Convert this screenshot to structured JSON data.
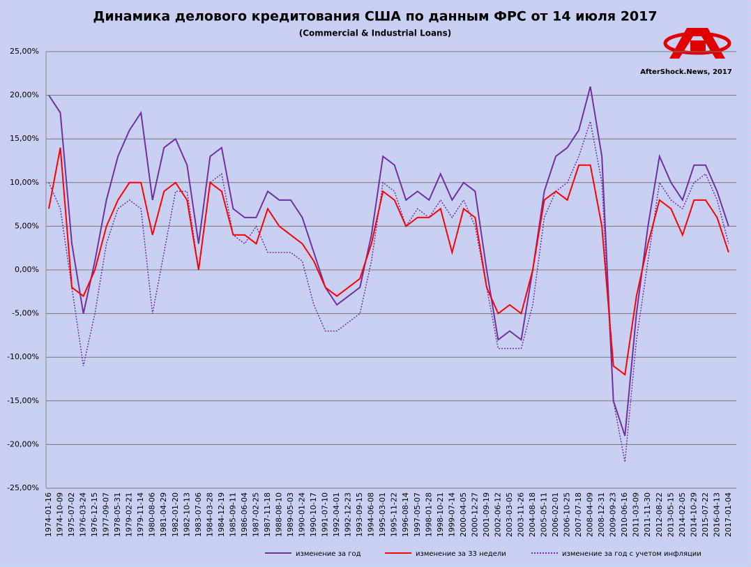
{
  "chart_data": {
    "type": "line",
    "title": "Динамика делового кредитования США по данным ФРС от 14 июля 2017",
    "subtitle": "(Commercial & Industrial Loans)",
    "watermark": "AfterShock.News, 2017",
    "categories": [
      "1974-01-16",
      "1974-10-09",
      "1975-07-02",
      "1976-03-24",
      "1976-12-15",
      "1977-09-07",
      "1978-05-31",
      "1979-02-21",
      "1979-11-14",
      "1980-08-06",
      "1981-04-29",
      "1982-01-20",
      "1982-10-13",
      "1983-07-06",
      "1984-03-28",
      "1984-12-19",
      "1985-09-11",
      "1986-06-04",
      "1987-02-25",
      "1987-11-18",
      "1988-08-10",
      "1989-05-03",
      "1990-01-24",
      "1990-10-17",
      "1991-07-10",
      "1992-04-01",
      "1992-12-23",
      "1993-09-15",
      "1994-06-08",
      "1995-03-01",
      "1995-11-22",
      "1996-08-14",
      "1997-05-07",
      "1998-01-28",
      "1998-10-21",
      "1999-07-14",
      "2000-04-05",
      "2000-12-27",
      "2001-09-19",
      "2002-06-12",
      "2003-03-05",
      "2003-11-26",
      "2004-08-18",
      "2005-05-11",
      "2006-02-01",
      "2006-10-25",
      "2007-07-18",
      "2008-04-09",
      "2008-12-31",
      "2009-09-23",
      "2010-06-16",
      "2011-03-09",
      "2011-11-30",
      "2012-08-22",
      "2013-05-15",
      "2014-02-05",
      "2014-10-29",
      "2015-07-22",
      "2016-04-13",
      "2017-01-04"
    ],
    "series": [
      {
        "name": "изменение за год",
        "color": "#7030a0",
        "style": "solid",
        "values": [
          20,
          18,
          3,
          -5,
          1,
          8,
          13,
          16,
          18,
          8,
          14,
          15,
          12,
          3,
          13,
          14,
          7,
          6,
          6,
          9,
          8,
          8,
          6,
          2,
          -2,
          -4,
          -3,
          -2,
          4,
          13,
          12,
          8,
          9,
          8,
          11,
          8,
          10,
          9,
          0,
          -8,
          -7,
          -8,
          0,
          9,
          13,
          14,
          16,
          21,
          13,
          -15,
          -19,
          -5,
          5,
          13,
          10,
          8,
          12,
          12,
          9,
          5
        ]
      },
      {
        "name": "изменение за 33 недели",
        "color": "#ff0000",
        "style": "solid",
        "values": [
          7,
          14,
          -2,
          -3,
          0,
          5,
          8,
          10,
          10,
          4,
          9,
          10,
          8,
          0,
          10,
          9,
          4,
          4,
          3,
          7,
          5,
          4,
          3,
          1,
          -2,
          -3,
          -2,
          -1,
          3,
          9,
          8,
          5,
          6,
          6,
          7,
          2,
          7,
          6,
          -2,
          -5,
          -4,
          -5,
          0,
          8,
          9,
          8,
          12,
          12,
          5,
          -11,
          -12,
          -3,
          3,
          8,
          7,
          4,
          8,
          8,
          6,
          2
        ]
      },
      {
        "name": "изменение за год с учетом инфляции",
        "color": "#7030a0",
        "style": "dotted",
        "values": [
          10,
          7,
          -2,
          -11,
          -5,
          3,
          7,
          8,
          7,
          -5,
          2,
          9,
          9,
          0,
          10,
          11,
          4,
          3,
          5,
          2,
          2,
          2,
          1,
          -4,
          -7,
          -7,
          -6,
          -5,
          1,
          10,
          9,
          5,
          7,
          6,
          8,
          6,
          8,
          5,
          -2,
          -9,
          -9,
          -9,
          -4,
          6,
          9,
          10,
          13,
          17,
          10,
          -15,
          -22,
          -8,
          1,
          10,
          8,
          7,
          10,
          11,
          8,
          3
        ]
      }
    ],
    "ylim": [
      -25,
      25
    ],
    "yticks": [
      {
        "value": -25,
        "label": "-25,00%"
      },
      {
        "value": -20,
        "label": "-20,00%"
      },
      {
        "value": -15,
        "label": "-15,00%"
      },
      {
        "value": -10,
        "label": "-10,00%"
      },
      {
        "value": -5,
        "label": "-5,00%"
      },
      {
        "value": 0,
        "label": "0,00%"
      },
      {
        "value": 5,
        "label": "5,00%"
      },
      {
        "value": 10,
        "label": "10,00%"
      },
      {
        "value": 15,
        "label": "15,00%"
      },
      {
        "value": 20,
        "label": "20,00%"
      },
      {
        "value": 25,
        "label": "25,00%"
      }
    ],
    "grid": true
  }
}
